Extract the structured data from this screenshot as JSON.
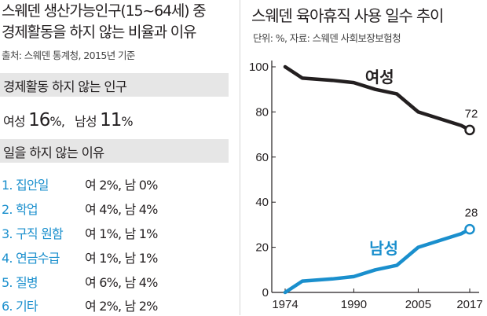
{
  "left_panel": {
    "title_line1": "스웨덴 생산가능인구(15~64세) 중",
    "title_line2": "경제활동을 하지 않는 비율과 이유",
    "source": "출처: 스웨덴 통계청, 2015년 기준",
    "section1_heading": "경제활동 하지 않는 인구",
    "summary": {
      "female_label": "여성",
      "female_value": "16",
      "male_label": "남성",
      "male_value": "11",
      "unit": "%"
    },
    "section2_heading": "일을 하지 않는 이유",
    "reasons": [
      {
        "label": "1. 집안일",
        "value": "여 2%,  남 0%"
      },
      {
        "label": "2. 학업",
        "value": "여 4%,  남 4%"
      },
      {
        "label": "3. 구직 원함",
        "value": "여 1%,  남 1%"
      },
      {
        "label": "4. 연금수급",
        "value": "여 1%,  남 1%"
      },
      {
        "label": "5. 질병",
        "value": "여 6%,  남 4%"
      },
      {
        "label": "6. 기타",
        "value": "여 2%,  남 2%"
      }
    ]
  },
  "right_panel": {
    "title": "스웨덴 육아휴직 사용 일수 추이",
    "subtitle": "단위: %, 자료: 스웨덴 사회보장보험청"
  },
  "chart_data": {
    "type": "line",
    "title": "스웨덴 육아휴직 사용 일수 추이",
    "unit": "%",
    "xlim": [
      1974,
      2017
    ],
    "ylim": [
      0,
      100
    ],
    "xticks": [
      "1974",
      "1990",
      "2005",
      "2017"
    ],
    "yticks": [
      "0",
      "20",
      "40",
      "60",
      "80",
      "100"
    ],
    "grid": false,
    "series": [
      {
        "name": "여성",
        "color": "#231f20",
        "end_label": "72",
        "x": [
          1974,
          1978,
          1985,
          1990,
          1995,
          2000,
          2005,
          2010,
          2015,
          2017
        ],
        "y": [
          100,
          95,
          94,
          93,
          90,
          88,
          80,
          77,
          74,
          72
        ]
      },
      {
        "name": "남성",
        "color": "#1a8fcd",
        "end_label": "28",
        "x": [
          1974,
          1978,
          1985,
          1990,
          1995,
          2000,
          2005,
          2010,
          2015,
          2017
        ],
        "y": [
          0,
          5,
          6,
          7,
          10,
          12,
          20,
          23,
          26,
          28
        ]
      }
    ]
  }
}
